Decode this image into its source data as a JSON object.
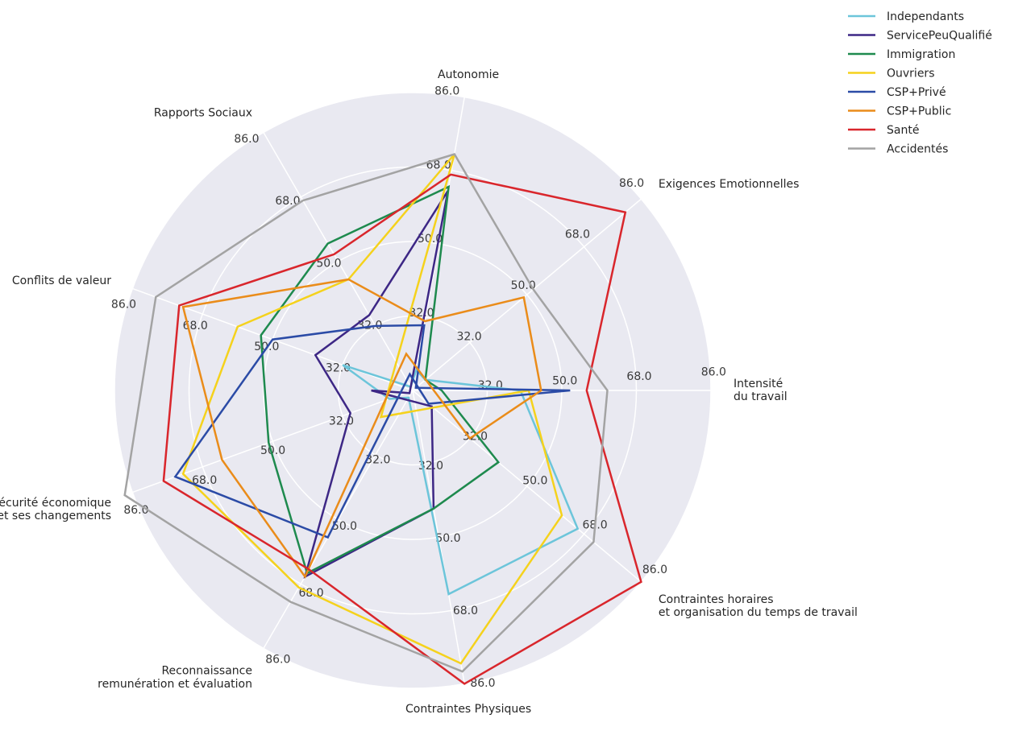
{
  "chart_data": {
    "type": "radar",
    "axes": [
      "Intensité\ndu travail",
      "Exigences Emotionnelles",
      "Autonomie",
      "Rapports Sociaux",
      "Conflits de valeur",
      "Insécurité économique\net ses changements",
      "Reconnaissance\nremunération et évaluation",
      "Contraintes Physiques",
      "Contraintes horaires\net organisation du temps de travail"
    ],
    "ticks": [
      "32.0",
      "32.0",
      "50.0",
      "68.0",
      "86.0"
    ],
    "rlim": [
      14,
      86
    ],
    "grid": true,
    "legend_position": "top-right",
    "series": [
      {
        "name": "Independants",
        "color": "#6cc5da",
        "values": [
          40,
          18,
          19,
          15,
          32,
          20,
          16,
          64,
          66
        ]
      },
      {
        "name": "ServicePeuQualifié",
        "color": "#3d2785",
        "values": [
          4,
          13,
          63,
          35,
          39,
          30,
          66,
          43,
          20
        ]
      },
      {
        "name": "Immigration",
        "color": "#1e8a4e",
        "values": [
          21,
          18,
          64,
          55,
          53,
          51,
          65,
          43,
          41
        ]
      },
      {
        "name": "Ouvriers",
        "color": "#f5d21c",
        "values": [
          42,
          4,
          72,
          45,
          59,
          73,
          69,
          81,
          61
        ]
      },
      {
        "name": "CSP+Privé",
        "color": "#2b4ba6",
        "values": [
          52,
          15,
          30,
          32,
          50,
          75,
          55,
          10,
          19
        ]
      },
      {
        "name": "CSP+Public",
        "color": "#ea8c1a",
        "values": [
          45,
          49,
          31,
          45,
          73,
          63,
          66,
          5,
          32
        ]
      },
      {
        "name": "Santé",
        "color": "#d9262c",
        "values": [
          56,
          81,
          67,
          52,
          74,
          78,
          64,
          86,
          86
        ]
      },
      {
        "name": "Accidentés",
        "color": "#a3a3a3",
        "values": [
          61,
          52,
          72,
          67,
          80,
          88,
          73,
          83,
          71
        ]
      }
    ]
  }
}
